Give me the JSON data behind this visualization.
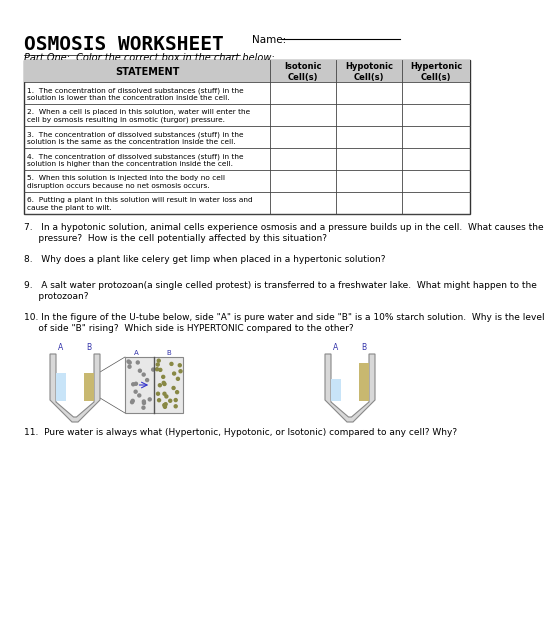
{
  "title": "OSMOSIS WORKSHEET",
  "name_label": "Name:",
  "part_one_label": "Part One:  Color the correct box in the chart below:",
  "table_headers": [
    "STATEMENT",
    "Isotonic\nCell(s)",
    "Hypotonic\nCell(s)",
    "Hypertonic\nCell(s)"
  ],
  "table_rows": [
    "1.  The concentration of dissolved substances (stuff) in the\nsolution is lower than the concentration inside the cell.",
    "2.  When a cell is placed in this solution, water will enter the\ncell by osmosis resulting in osmotic (turgor) pressure.",
    "3.  The concentration of dissolved substances (stuff) in the\nsolution is the same as the concentration inside the cell.",
    "4.  The concentration of dissolved substances (stuff) in the\nsolution is higher than the concentration inside the cell.",
    "5.  When this solution is injected into the body no cell\ndisruption occurs because no net osmosis occurs.",
    "6.  Putting a plant in this solution will result in water loss and\ncause the plant to wilt."
  ],
  "q7": "7.   In a hypotonic solution, animal cells experience osmosis and a pressure builds up in the cell.  What causes the\n     pressure?  How is the cell potentially affected by this situation?",
  "q8": "8.   Why does a plant like celery get limp when placed in a hypertonic solution?",
  "q9": "9.   A salt water protozoan(a single celled protest) is transferred to a freshwater lake.  What might happen to the\n     protozoan?",
  "q10": "10. In the figure of the U-tube below, side \"A\" is pure water and side \"B\" is a 10% starch solution.  Why is the level\n     of side \"B\" rising?  Which side is HYPERTONIC compared to the other?",
  "q11": "11.  Pure water is always what (Hypertonic, Hypotonic, or Isotonic) compared to any cell? Why?",
  "bg_color": "#ffffff",
  "text_color": "#000000",
  "grid_color": "#555555"
}
